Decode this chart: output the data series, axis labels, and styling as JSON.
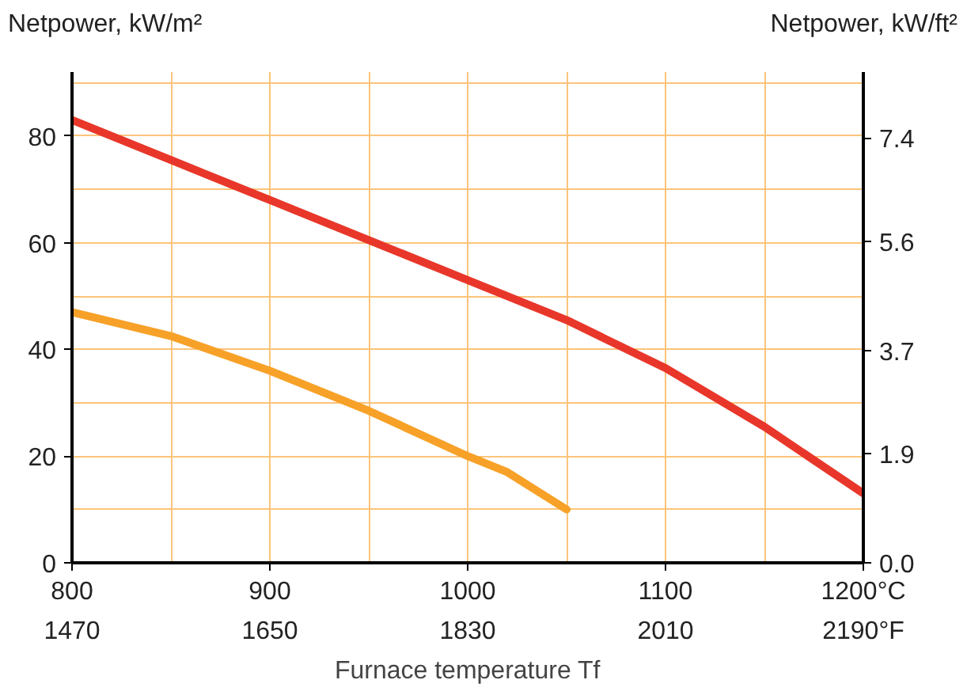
{
  "chart_data": {
    "type": "line",
    "xlabel": "Furnace temperature Tf",
    "ylabel": "Netpower, kW/m²",
    "y2label": "Netpower, kW/ft²",
    "xlim": [
      800,
      1200
    ],
    "xticks": [
      800,
      {
        "value": 850,
        "label": null
      },
      900,
      {
        "value": 950,
        "label": null
      },
      1000,
      {
        "value": 1050,
        "label": null
      },
      1100,
      {
        "value": 1150,
        "label": null
      },
      {
        "value": 1200,
        "label": "1200°C"
      }
    ],
    "x2lim": [
      1470,
      2190
    ],
    "x2ticks": [
      1470,
      1650,
      1830,
      2010,
      {
        "value": 2190,
        "label": "2190°F"
      }
    ],
    "ylim": [
      0,
      92
    ],
    "yticks": [
      0,
      {
        "value": 10,
        "label": null
      },
      20,
      {
        "value": 30,
        "label": null
      },
      40,
      {
        "value": 50,
        "label": null
      },
      60,
      {
        "value": 70,
        "label": null
      },
      80,
      {
        "value": 90,
        "label": null
      }
    ],
    "y2lim": [
      0,
      8.55
    ],
    "y2ticks": [
      {
        "value": 0,
        "label": "0.0"
      },
      1.9,
      3.7,
      5.6,
      7.4
    ],
    "grid": true,
    "line_style": "solid",
    "marker": "none",
    "series": [
      {
        "color": "#e8372a",
        "x": [
          800,
          850,
          900,
          950,
          1000,
          1050,
          1100,
          1150,
          1200
        ],
        "values": [
          83,
          75.5,
          68,
          60.5,
          53,
          45.5,
          36.5,
          25.5,
          13
        ]
      },
      {
        "color": "#f7a128",
        "x": [
          800,
          850,
          900,
          950,
          1000,
          1020,
          1050
        ],
        "values": [
          47,
          42.5,
          36,
          28.5,
          20,
          17,
          10
        ]
      }
    ]
  }
}
